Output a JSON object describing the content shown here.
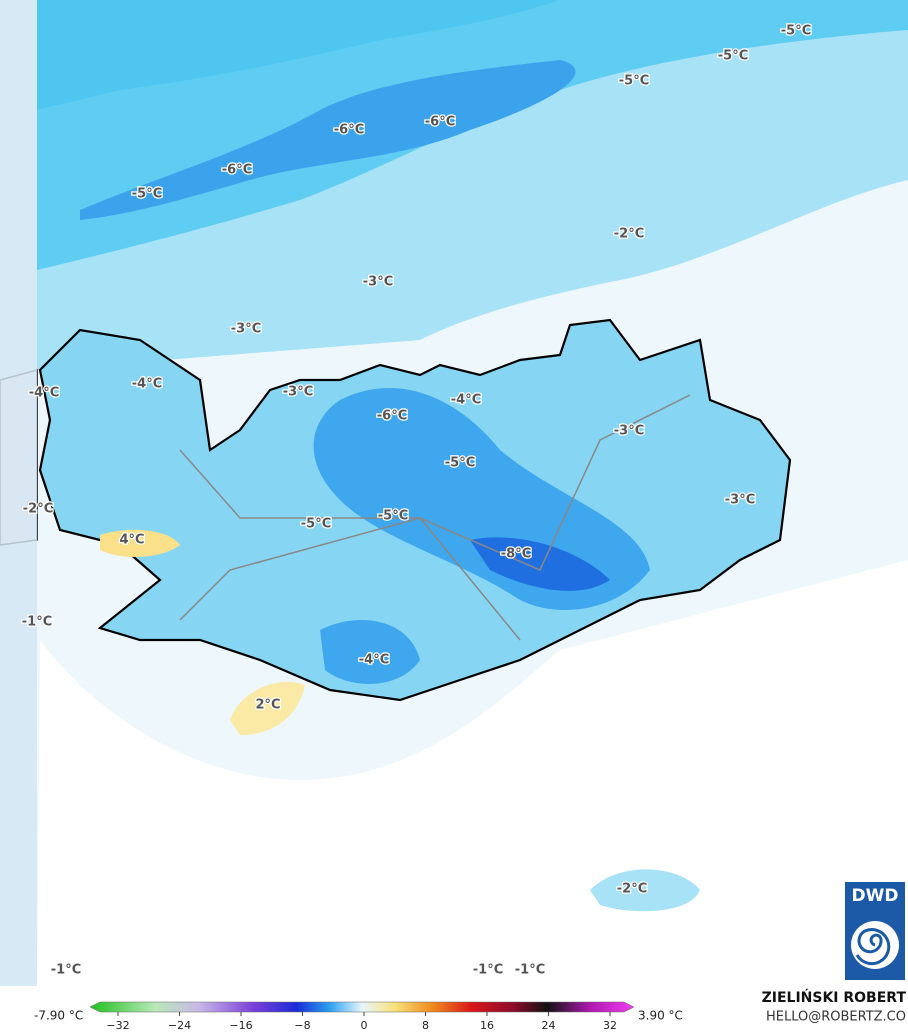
{
  "map": {
    "contour_labels": [
      "-5°C",
      "-5°C",
      "-5°C",
      "-6°C",
      "-6°C",
      "-6°C",
      "-5°C",
      "-2°C",
      "-3°C",
      "-3°C",
      "-4°C",
      "-4°C",
      "-3°C",
      "-6°C",
      "-4°C",
      "-3°C",
      "-5°C",
      "-3°C",
      "-2°C",
      "-5°C",
      "-5°C",
      "4°C",
      "-8°C",
      "-1°C",
      "-4°C",
      "2°C",
      "-2°C",
      "-1°C",
      "-1°C",
      "-1°C"
    ],
    "logo": "DWD"
  },
  "legend": {
    "min_label": "-7.90 °C",
    "max_label": "3.90 °C",
    "ticks": [
      {
        "value": -32,
        "label": "−32"
      },
      {
        "value": -24,
        "label": "−24"
      },
      {
        "value": -16,
        "label": "−16"
      },
      {
        "value": -8,
        "label": "−8"
      },
      0,
      8,
      16,
      24,
      32
    ]
  },
  "credit": {
    "author": "ZIELIŃSKI ROBERT",
    "email": "HELLO@ROBERTZ.CO"
  }
}
